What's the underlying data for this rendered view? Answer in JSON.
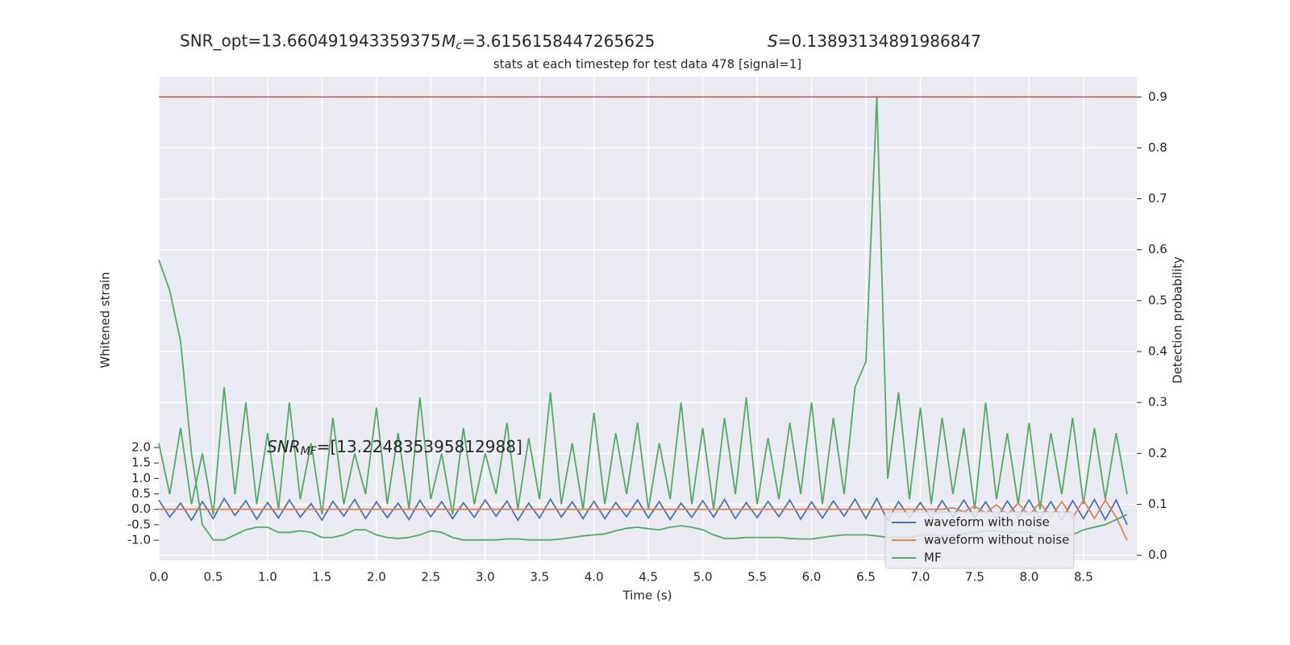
{
  "chart_data": {
    "type": "line",
    "title": "stats at each timestep for test data 478 [signal=1]",
    "stats": {
      "snr_opt": "SNR_opt=13.660491943359375",
      "mc": {
        "symbol": "M",
        "sub": "c",
        "text": "=3.6156158447265625"
      },
      "s": {
        "symbol": "S",
        "text": "=0.13893134891986847"
      },
      "snr_mf": {
        "symbol": "SNR",
        "sub": "MF",
        "text": "=[13.224835395812988]"
      }
    },
    "xlabel": "Time (s)",
    "ylabel": "Whitened strain",
    "y2label": "Detection probability",
    "xlim": [
      0,
      8.99
    ],
    "ylim": [
      -1.65,
      14.0
    ],
    "y2lim": [
      -0.01,
      0.94
    ],
    "xticks": [
      {
        "value": 0,
        "label": "0.0"
      },
      0.5,
      {
        "value": 1,
        "label": "1.0"
      },
      1.5,
      {
        "value": 2,
        "label": "2.0"
      },
      2.5,
      {
        "value": 3,
        "label": "3.0"
      },
      3.5,
      {
        "value": 4,
        "label": "4.0"
      },
      4.5,
      {
        "value": 5,
        "label": "5.0"
      },
      5.5,
      {
        "value": 6,
        "label": "6.0"
      },
      6.5,
      {
        "value": 7,
        "label": "7.0"
      },
      7.5,
      {
        "value": 8,
        "label": "8.0"
      },
      8.5
    ],
    "yticks": [
      {
        "value": -1,
        "label": "-1.0"
      },
      -0.5,
      {
        "value": 0,
        "label": "0.0"
      },
      0.5,
      {
        "value": 1,
        "label": "1.0"
      },
      1.5,
      {
        "value": 2,
        "label": "2.0"
      }
    ],
    "y2ticks": [
      {
        "value": 0,
        "label": "0.0"
      },
      0.1,
      0.2,
      0.3,
      0.4,
      0.5,
      0.6,
      0.7,
      0.8,
      0.9
    ],
    "grid": true,
    "legend": "lower right",
    "hlines": [
      {
        "value": 0.9,
        "color": "#c44e52",
        "axis": "y2"
      }
    ],
    "x": [
      0.0,
      0.1,
      0.2,
      0.3,
      0.4,
      0.5,
      0.6,
      0.7,
      0.8,
      0.9,
      1.0,
      1.1,
      1.2,
      1.3,
      1.4,
      1.5,
      1.6,
      1.7,
      1.8,
      1.9,
      2.0,
      2.1,
      2.2,
      2.3,
      2.4,
      2.5,
      2.6,
      2.7,
      2.8,
      2.9,
      3.0,
      3.1,
      3.2,
      3.3,
      3.4,
      3.5,
      3.6,
      3.7,
      3.8,
      3.9,
      4.0,
      4.1,
      4.2,
      4.3,
      4.4,
      4.5,
      4.6,
      4.7,
      4.8,
      4.9,
      5.0,
      5.1,
      5.2,
      5.3,
      5.4,
      5.5,
      5.6,
      5.7,
      5.8,
      5.9,
      6.0,
      6.1,
      6.2,
      6.3,
      6.4,
      6.5,
      6.6,
      6.7,
      6.8,
      6.9,
      7.0,
      7.1,
      7.2,
      7.3,
      7.4,
      7.5,
      7.6,
      7.7,
      7.8,
      7.9,
      8.0,
      8.1,
      8.2,
      8.3,
      8.4,
      8.5,
      8.6,
      8.7,
      8.8,
      8.9
    ],
    "series": [
      {
        "color": "#55a868",
        "axis": "y2",
        "values": [
          0.22,
          0.12,
          0.25,
          0.1,
          0.2,
          0.08,
          0.33,
          0.12,
          0.3,
          0.1,
          0.24,
          0.09,
          0.3,
          0.11,
          0.22,
          0.08,
          0.27,
          0.1,
          0.2,
          0.12,
          0.29,
          0.1,
          0.24,
          0.09,
          0.31,
          0.11,
          0.2,
          0.08,
          0.25,
          0.1,
          0.2,
          0.12,
          0.26,
          0.09,
          0.23,
          0.11,
          0.32,
          0.1,
          0.22,
          0.09,
          0.28,
          0.1,
          0.24,
          0.12,
          0.26,
          0.09,
          0.22,
          0.11,
          0.3,
          0.1,
          0.25,
          0.09,
          0.27,
          0.12,
          0.31,
          0.1,
          0.23,
          0.11,
          0.26,
          0.12,
          0.3,
          0.1,
          0.27,
          0.12,
          0.33,
          0.38,
          0.9,
          0.15,
          0.32,
          0.11,
          0.29,
          0.1,
          0.27,
          0.12,
          0.25,
          0.09,
          0.3,
          0.11,
          0.24,
          0.1,
          0.26,
          0.09,
          0.24,
          0.12,
          0.27,
          0.1,
          0.25,
          0.11,
          0.24,
          0.12
        ]
      },
      {
        "name": "waveform with noise",
        "color": "#4c72b0",
        "values": [
          0.3,
          -0.25,
          0.2,
          -0.35,
          0.25,
          -0.3,
          0.35,
          -0.2,
          0.28,
          -0.32,
          0.22,
          -0.28,
          0.3,
          -0.25,
          0.18,
          -0.35,
          0.26,
          -0.22,
          0.32,
          -0.3,
          0.24,
          -0.27,
          0.2,
          -0.33,
          0.29,
          -0.24,
          0.25,
          -0.3,
          0.21,
          -0.26,
          0.3,
          -0.22,
          0.27,
          -0.35,
          0.2,
          -0.28,
          0.33,
          -0.25,
          0.24,
          -0.3,
          0.26,
          -0.3,
          0.22,
          -0.24,
          0.3,
          -0.28,
          0.25,
          -0.33,
          0.2,
          -0.26,
          0.28,
          -0.25,
          0.32,
          -0.3,
          0.22,
          -0.27,
          0.26,
          -0.24,
          0.3,
          -0.32,
          0.24,
          -0.28,
          0.27,
          -0.22,
          0.33,
          -0.3,
          0.35,
          -0.36,
          0.25,
          -0.27,
          0.22,
          -0.3,
          0.28,
          -0.25,
          0.3,
          -0.28,
          0.24,
          -0.32,
          0.27,
          -0.26,
          0.3,
          -0.3,
          0.25,
          -0.35,
          0.28,
          -0.3,
          0.32,
          -0.33,
          0.3,
          -0.5
        ]
      },
      {
        "name": "waveform without noise",
        "color": "#dd8452",
        "values": [
          0,
          0,
          0,
          0,
          0,
          0,
          0,
          0,
          0,
          0,
          0,
          0,
          0,
          0,
          0,
          0,
          0,
          0,
          0,
          0,
          0,
          0,
          0,
          0,
          0,
          0,
          0,
          0,
          0,
          0,
          0,
          0,
          0,
          0,
          0,
          0,
          0,
          0,
          0,
          0,
          0,
          0,
          0,
          0,
          0,
          0,
          0,
          0,
          0,
          0,
          0,
          0,
          0,
          0,
          0,
          0,
          0,
          0,
          0,
          0,
          0,
          0,
          0,
          0,
          0,
          0,
          0,
          0,
          0,
          0,
          0,
          0,
          0,
          0.05,
          -0.08,
          0.1,
          -0.12,
          0.15,
          -0.17,
          0.2,
          -0.2,
          0.22,
          -0.25,
          0.25,
          -0.28,
          0.3,
          -0.3,
          0.3,
          -0.25,
          -1.0
        ]
      },
      {
        "name": "MF",
        "color": "#55a868",
        "axis": "y2",
        "values": [
          0.58,
          0.52,
          0.42,
          0.2,
          0.06,
          0.03,
          0.03,
          0.04,
          0.05,
          0.055,
          0.055,
          0.045,
          0.045,
          0.048,
          0.045,
          0.035,
          0.035,
          0.04,
          0.05,
          0.05,
          0.04,
          0.035,
          0.033,
          0.035,
          0.04,
          0.048,
          0.045,
          0.035,
          0.03,
          0.03,
          0.03,
          0.03,
          0.032,
          0.032,
          0.03,
          0.03,
          0.03,
          0.032,
          0.035,
          0.038,
          0.04,
          0.042,
          0.048,
          0.053,
          0.055,
          0.052,
          0.05,
          0.055,
          0.058,
          0.055,
          0.05,
          0.04,
          0.033,
          0.033,
          0.035,
          0.035,
          0.035,
          0.035,
          0.033,
          0.032,
          0.032,
          0.035,
          0.038,
          0.04,
          0.04,
          0.04,
          0.038,
          0.035,
          0.035,
          0.035,
          0.04,
          0.04,
          0.038,
          0.04,
          0.042,
          0.045,
          0.048,
          0.048,
          0.045,
          0.045,
          0.045,
          0.04,
          0.04,
          0.04,
          0.04,
          0.05,
          0.055,
          0.06,
          0.07,
          0.08
        ]
      }
    ]
  }
}
